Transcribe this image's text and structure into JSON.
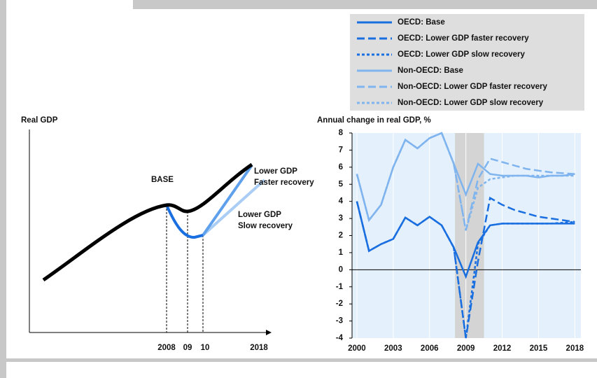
{
  "chart_data": [
    {
      "type": "schematic",
      "y_label": "Real GDP",
      "base_label": "BASE",
      "faster_label": [
        "Lower GDP",
        "Faster recovery"
      ],
      "slow_label": [
        "Lower GDP",
        "Slow recovery"
      ],
      "categories": [
        "2008",
        "09",
        "10",
        "2018"
      ]
    },
    {
      "type": "line",
      "y_label": "Annual change in real GDP, %",
      "x": [
        2000,
        2001,
        2002,
        2003,
        2004,
        2005,
        2006,
        2007,
        2008,
        2009,
        2010,
        2011,
        2012,
        2013,
        2014,
        2015,
        2016,
        2017,
        2018
      ],
      "series": [
        {
          "name": "OECD: Base",
          "color": "#1a6fe0",
          "dash": "solid",
          "values": [
            4.0,
            1.1,
            1.5,
            1.8,
            3.05,
            2.6,
            3.1,
            2.6,
            1.3,
            -0.4,
            1.6,
            2.6,
            2.7,
            2.7,
            2.7,
            2.7,
            2.7,
            2.7,
            2.7
          ]
        },
        {
          "name": "OECD: Lower GDP faster recovery",
          "color": "#1a6fe0",
          "dash": "long",
          "values": [
            4.0,
            1.1,
            1.5,
            1.8,
            3.05,
            2.6,
            3.1,
            2.6,
            1.3,
            -4.0,
            0.5,
            4.2,
            3.8,
            3.5,
            3.3,
            3.1,
            3.0,
            2.9,
            2.8
          ]
        },
        {
          "name": "OECD: Lower GDP slow recovery",
          "color": "#1a6fe0",
          "dash": "short",
          "values": [
            4.0,
            1.1,
            1.5,
            1.8,
            3.05,
            2.6,
            3.1,
            2.6,
            1.3,
            -4.0,
            1.5,
            2.6,
            2.7,
            2.7,
            2.7,
            2.7,
            2.7,
            2.75,
            2.8
          ]
        },
        {
          "name": "Non-OECD: Base",
          "color": "#7fb4ef",
          "dash": "solid",
          "values": [
            5.6,
            2.9,
            3.8,
            6.0,
            7.6,
            7.1,
            7.7,
            8.0,
            6.2,
            4.4,
            6.2,
            5.6,
            5.5,
            5.5,
            5.5,
            5.4,
            5.5,
            5.5,
            5.6
          ]
        },
        {
          "name": "Non-OECD: Lower GDP faster recovery",
          "color": "#7fb4ef",
          "dash": "long",
          "values": [
            5.6,
            2.9,
            3.8,
            6.0,
            7.6,
            7.1,
            7.7,
            8.0,
            6.2,
            2.3,
            5.3,
            6.5,
            6.3,
            6.1,
            5.9,
            5.8,
            5.7,
            5.65,
            5.6
          ]
        },
        {
          "name": "Non-OECD: Lower GDP slow recovery",
          "color": "#7fb4ef",
          "dash": "short",
          "values": [
            5.6,
            2.9,
            3.8,
            6.0,
            7.6,
            7.1,
            7.7,
            8.0,
            6.2,
            2.3,
            4.8,
            5.3,
            5.4,
            5.5,
            5.5,
            5.5,
            5.5,
            5.5,
            5.5
          ]
        }
      ],
      "xlim": [
        1999.6,
        2018.5
      ],
      "xticks": [
        2000,
        2003,
        2006,
        2009,
        2012,
        2015,
        2018
      ],
      "ylim": [
        -4,
        8
      ],
      "yticks": [
        -4,
        -3,
        -2,
        -1,
        0,
        1,
        2,
        3,
        4,
        5,
        6,
        7,
        8
      ],
      "shaded_range": [
        2008.1,
        2010.5
      ],
      "grid": true,
      "legend": "top"
    }
  ]
}
